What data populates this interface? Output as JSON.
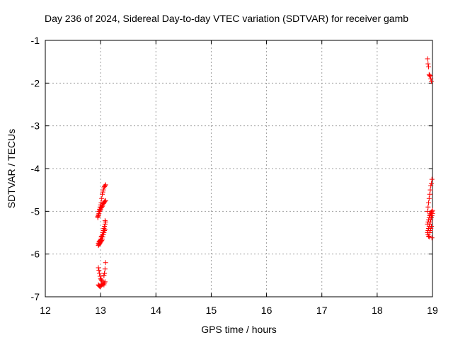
{
  "chart_data": {
    "type": "scatter",
    "title": "Day 236 of 2024, Sidereal Day-to-day VTEC variation (SDTVAR) for receiver gamb",
    "xlabel": "GPS time / hours",
    "ylabel": "SDTVAR / TECUs",
    "xlim": [
      12,
      19
    ],
    "ylim": [
      -7,
      -1
    ],
    "xticks": [
      "12",
      "13",
      "14",
      "15",
      "16",
      "17",
      "18",
      "19"
    ],
    "yticks": [
      "-1",
      "-2",
      "-3",
      "-4",
      "-5",
      "-6",
      "-7"
    ],
    "grid": true,
    "marker": "plus",
    "color": "#ff0000",
    "series": [
      {
        "x": [
          12.95,
          12.96,
          12.97,
          12.98,
          12.99,
          13.0,
          13.01,
          13.02,
          13.03,
          13.04,
          13.05,
          13.06,
          13.07,
          13.08,
          13.09,
          12.95,
          12.96,
          12.97,
          12.98,
          12.99,
          13.0,
          13.01,
          13.02,
          13.03,
          13.04,
          13.05,
          13.06,
          13.07,
          13.08,
          13.09,
          12.96,
          12.97,
          12.98,
          12.99,
          13.0,
          13.01,
          13.02,
          13.03,
          13.04,
          13.05,
          13.06,
          13.07,
          13.08,
          12.96,
          12.97,
          12.98,
          12.99,
          13.0,
          13.01,
          13.02,
          13.03,
          13.04,
          13.05,
          13.06,
          13.07,
          13.08,
          12.96,
          12.97,
          12.98,
          12.99,
          13.0,
          13.02,
          13.04,
          13.06,
          13.07,
          13.08,
          13.09,
          13.0,
          13.02,
          13.04,
          13.05,
          13.06,
          13.07,
          13.08,
          12.96,
          12.97,
          12.98,
          12.99,
          13.0,
          13.01,
          13.02,
          13.04,
          13.06,
          13.07,
          13.08,
          13.09
        ],
        "y": [
          -5.12,
          -5.08,
          -5.0,
          -4.95,
          -4.9,
          -4.85,
          -4.8,
          -4.7,
          -4.6,
          -4.55,
          -4.5,
          -4.45,
          -4.42,
          -4.4,
          -4.38,
          -5.15,
          -5.1,
          -5.05,
          -5.0,
          -4.98,
          -4.95,
          -4.92,
          -4.9,
          -4.88,
          -4.85,
          -4.82,
          -4.8,
          -4.78,
          -4.76,
          -4.75,
          -5.75,
          -5.72,
          -5.7,
          -5.68,
          -5.65,
          -5.6,
          -5.58,
          -5.55,
          -5.5,
          -5.45,
          -5.4,
          -5.35,
          -5.3,
          -5.8,
          -5.78,
          -5.76,
          -5.74,
          -5.72,
          -5.7,
          -5.68,
          -5.65,
          -5.6,
          -5.55,
          -5.5,
          -5.45,
          -5.42,
          -6.72,
          -6.74,
          -6.75,
          -6.76,
          -6.74,
          -6.72,
          -6.7,
          -6.72,
          -6.68,
          -6.65,
          -6.2,
          -6.75,
          -6.73,
          -6.7,
          -6.68,
          -6.5,
          -6.45,
          -6.35,
          -6.32,
          -6.38,
          -6.45,
          -6.52,
          -6.58,
          -6.6,
          -6.62,
          -6.65,
          -6.5,
          -6.45,
          -5.22,
          -5.25
        ]
      },
      {
        "x": [
          18.91,
          18.92,
          18.93,
          18.94,
          18.95,
          18.96,
          18.97,
          18.98,
          18.91,
          18.92,
          18.93,
          18.94,
          18.95,
          18.96,
          18.97,
          18.98,
          18.99,
          18.91,
          18.92,
          18.93,
          18.94,
          18.95,
          18.96,
          18.97,
          18.98,
          18.99,
          19.0,
          18.91,
          18.92,
          18.93,
          18.94,
          18.95,
          18.96,
          18.97,
          18.98,
          18.99,
          19.0,
          18.92,
          18.93,
          18.94,
          18.95,
          18.96,
          18.97,
          18.98,
          18.99
        ],
        "y": [
          -1.43,
          -1.55,
          -1.62,
          -1.8,
          -1.82,
          -1.85,
          -1.9,
          -1.96,
          -5.0,
          -4.9,
          -4.8,
          -4.7,
          -4.6,
          -4.5,
          -4.4,
          -4.35,
          -4.25,
          -5.3,
          -5.25,
          -5.2,
          -5.15,
          -5.1,
          -5.08,
          -5.05,
          -5.02,
          -5.0,
          -4.98,
          -5.5,
          -5.45,
          -5.4,
          -5.35,
          -5.3,
          -5.25,
          -5.2,
          -5.15,
          -5.1,
          -5.05,
          -5.55,
          -5.58,
          -5.6,
          -5.5,
          -5.45,
          -5.4,
          -5.35,
          -5.62
        ]
      }
    ]
  }
}
